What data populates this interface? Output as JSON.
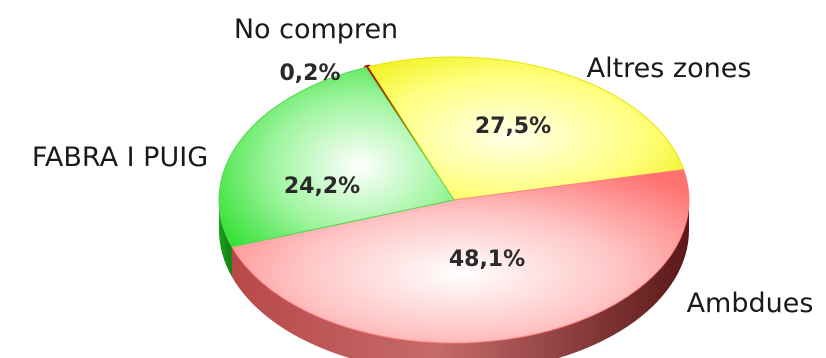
{
  "chart_data": {
    "type": "pie",
    "style": "3d",
    "slices": [
      {
        "label": "No compren",
        "value": 0.2,
        "value_label": "0,2%",
        "color": "#d40000"
      },
      {
        "label": "Altres zones",
        "value": 27.5,
        "value_label": "27,5%",
        "color": "#ffff40"
      },
      {
        "label": "Ambdues",
        "value": 48.1,
        "value_label": "48,1%",
        "color": "#ff7f7f"
      },
      {
        "label": "FABRA I PUIG",
        "value": 24.2,
        "value_label": "24,2%",
        "color": "#33e633"
      }
    ]
  }
}
